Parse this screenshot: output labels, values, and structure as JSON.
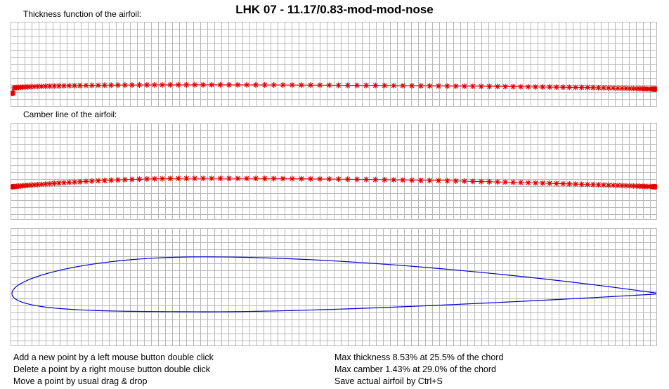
{
  "title": "LHK  07 - 11.17/0.83-mod-mod-nose",
  "thickness_panel": {
    "label": "Thickness function of the airfoil:"
  },
  "camber_panel": {
    "label": "Camber line of the airfoil:"
  },
  "colors": {
    "control_points": "#e00000",
    "airfoil_outline": "#0000cc",
    "grid": "#b8b8b8"
  },
  "instructions": [
    "Add a new point by a left mouse button double click",
    "Delete a point by a right mouse button double click",
    "Move a point by usual drag & drop"
  ],
  "stats": {
    "max_thickness": "Max thickness 8.53% at 25.5% of the chord",
    "max_camber": "Max camber 1.43% at 29.0% of the chord",
    "save_hint": "Save actual airfoil by Ctrl+S"
  },
  "airfoil": {
    "max_thickness_pct": 8.53,
    "max_thickness_pos_pct": 25.5,
    "max_camber_pct": 1.43,
    "max_camber_pos_pct": 29.0
  }
}
